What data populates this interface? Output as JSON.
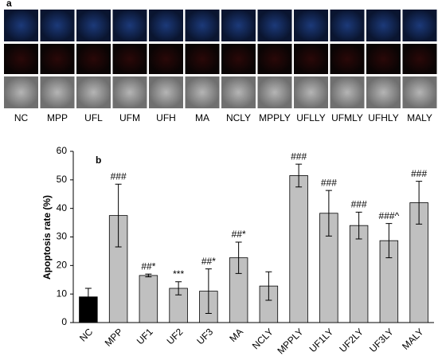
{
  "panel_a": {
    "label": "a",
    "labels": [
      "NC",
      "MPP",
      "UFL",
      "UFM",
      "UFH",
      "MA",
      "NCLY",
      "MPPLY",
      "UFLLY",
      "UFMLY",
      "UFHLY",
      "MALY"
    ]
  },
  "chart_data": {
    "type": "bar",
    "panel_label": "b",
    "ylabel": "Apoptosis rate (%)",
    "categories": [
      "NC",
      "MPP",
      "UF1",
      "UF2",
      "UF3",
      "MA",
      "NCLY",
      "MPPLY",
      "UF1LY",
      "UF2LY",
      "UF3LY",
      "MALY"
    ],
    "values": [
      9,
      37.5,
      16.5,
      12,
      11,
      22.7,
      12.8,
      51.5,
      38.3,
      34,
      28.7,
      42
    ],
    "errors": [
      3,
      11,
      0.5,
      2.3,
      7.8,
      5.5,
      5,
      4,
      8,
      4.7,
      6,
      7.5
    ],
    "annotations": [
      null,
      "###",
      "##*",
      "***",
      "##*",
      "##*",
      null,
      "###",
      "###",
      "###",
      "###^",
      "###"
    ],
    "colors": [
      "#000000",
      "#c0c0c0",
      "#c0c0c0",
      "#c0c0c0",
      "#c0c0c0",
      "#c0c0c0",
      "#c0c0c0",
      "#c0c0c0",
      "#c0c0c0",
      "#c0c0c0",
      "#c0c0c0",
      "#c0c0c0"
    ],
    "ylim": [
      0,
      60
    ],
    "yticks": [
      0,
      10,
      20,
      30,
      40,
      50,
      60
    ],
    "grid": false
  }
}
